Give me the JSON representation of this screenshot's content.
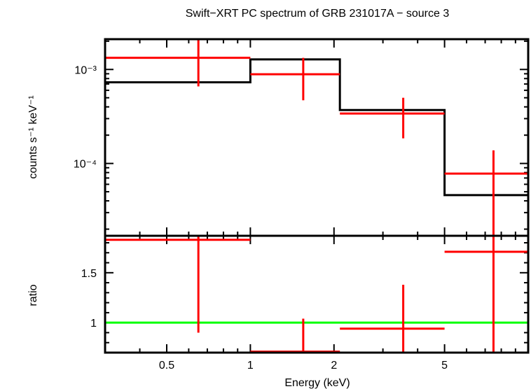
{
  "chart_data": {
    "type": "step",
    "title": "Swift−XRT PC spectrum of GRB 231017A − source 3",
    "xlabel": "Energy (keV)",
    "x_scale": "log",
    "xlim": [
      0.3,
      10
    ],
    "x_ticks": [
      {
        "value": 0.5,
        "label": "0.5"
      },
      {
        "value": 1,
        "label": "1"
      },
      {
        "value": 2,
        "label": "2"
      },
      {
        "value": 5,
        "label": "5"
      }
    ],
    "colors": {
      "data": "#ff0000",
      "model": "#000000",
      "ratio_line": "#00ff00"
    },
    "panels": [
      {
        "name": "spectrum",
        "ylabel": "counts s⁻¹ keV⁻¹",
        "y_scale": "log",
        "ylim": [
          1.7e-05,
          0.0021
        ],
        "y_ticks": [
          {
            "value": 0.001,
            "label": "10⁻³"
          },
          {
            "value": 0.0001,
            "label": "10⁻⁴"
          }
        ],
        "data_series": {
          "name": "data",
          "points": [
            {
              "x": 0.65,
              "x_lo": 0.3,
              "x_hi": 1.0,
              "y": 0.00133,
              "y_lo": 0.00066,
              "y_hi": 0.0021
            },
            {
              "x": 1.55,
              "x_lo": 1.0,
              "x_hi": 2.1,
              "y": 0.00089,
              "y_lo": 0.00047,
              "y_hi": 0.00133
            },
            {
              "x": 3.55,
              "x_lo": 2.1,
              "x_hi": 5.0,
              "y": 0.00034,
              "y_lo": 0.000185,
              "y_hi": 0.0005
            },
            {
              "x": 7.5,
              "x_lo": 5.0,
              "x_hi": 10.0,
              "y": 7.8e-05,
              "y_lo": 1.7e-05,
              "y_hi": 0.000138
            }
          ]
        },
        "model_series": {
          "name": "model",
          "steps": [
            {
              "x_lo": 0.3,
              "x_hi": 1.0,
              "y": 0.00073
            },
            {
              "x_lo": 1.0,
              "x_hi": 2.1,
              "y": 0.00128
            },
            {
              "x_lo": 2.1,
              "x_hi": 5.0,
              "y": 0.00037
            },
            {
              "x_lo": 5.0,
              "x_hi": 10.0,
              "y": 4.6e-05
            }
          ]
        }
      },
      {
        "name": "ratio",
        "ylabel": "ratio",
        "y_scale": "linear",
        "ylim": [
          0.7,
          1.87
        ],
        "y_ticks": [
          {
            "value": 1,
            "label": "1"
          },
          {
            "value": 1.5,
            "label": "1.5"
          }
        ],
        "reference_line": 1,
        "data_series": {
          "name": "ratio",
          "points": [
            {
              "x": 0.65,
              "x_lo": 0.3,
              "x_hi": 1.0,
              "y": 1.83,
              "y_lo": 0.9,
              "y_hi": 1.87
            },
            {
              "x": 1.55,
              "x_lo": 1.0,
              "x_hi": 2.1,
              "y": 0.71,
              "y_lo": 0.7,
              "y_hi": 1.04
            },
            {
              "x": 3.55,
              "x_lo": 2.1,
              "x_hi": 5.0,
              "y": 0.94,
              "y_lo": 0.7,
              "y_hi": 1.38
            },
            {
              "x": 7.5,
              "x_lo": 5.0,
              "x_hi": 10.0,
              "y": 1.71,
              "y_lo": 0.7,
              "y_hi": 1.87
            }
          ]
        }
      }
    ]
  }
}
